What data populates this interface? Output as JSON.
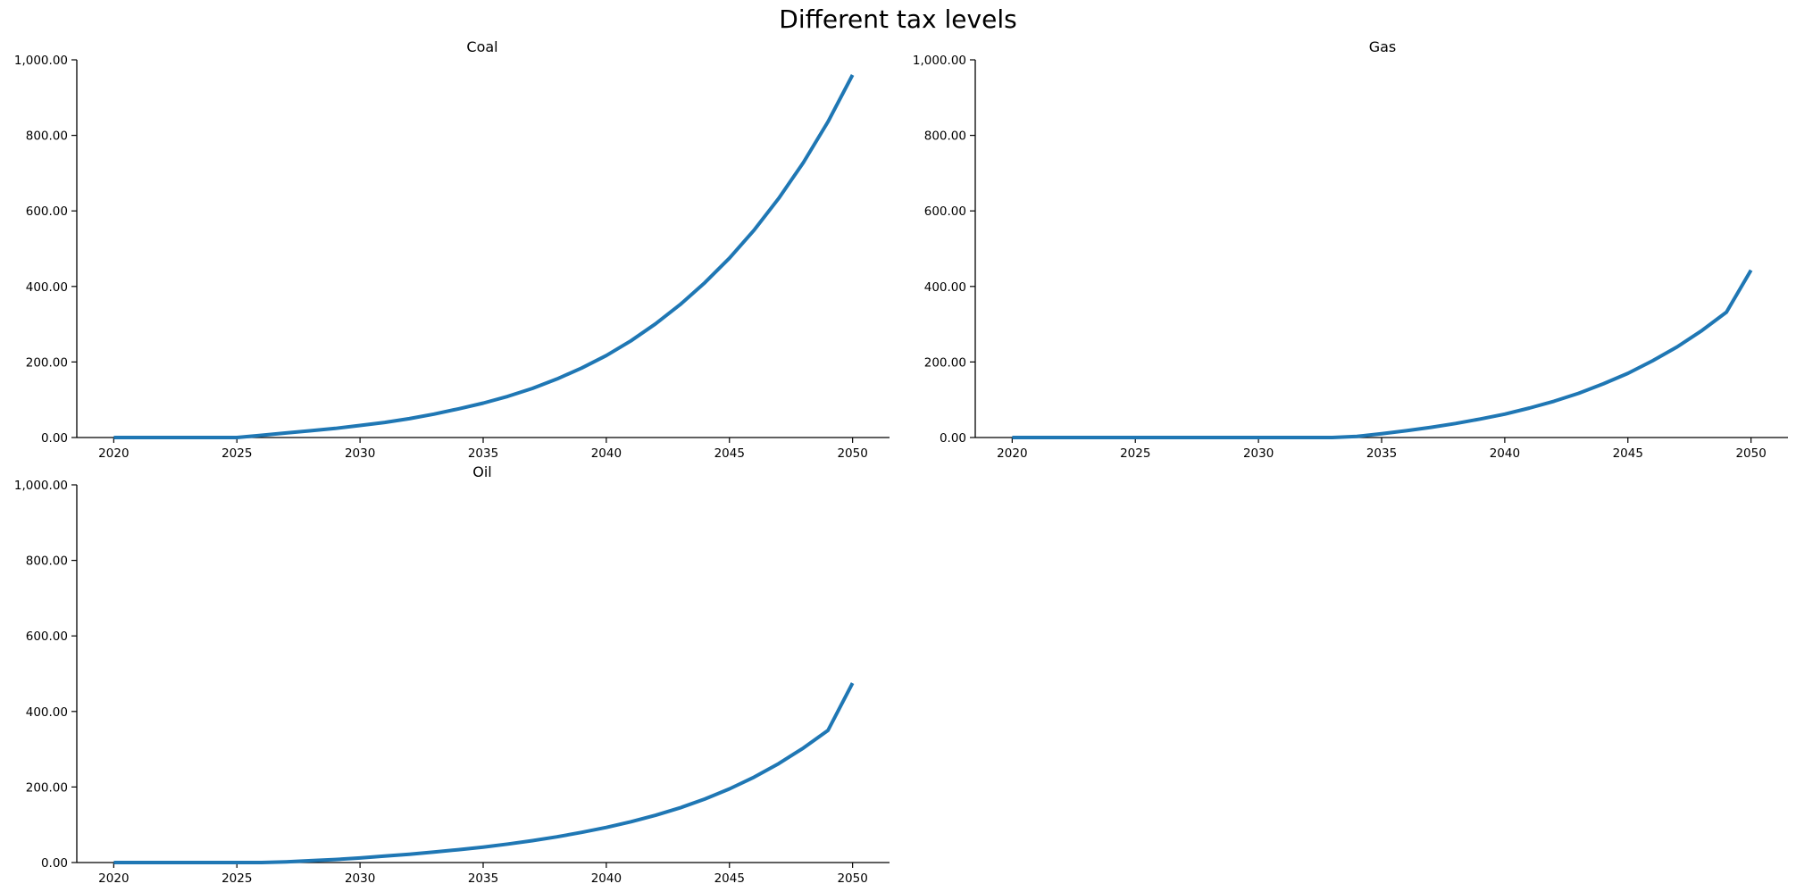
{
  "figure": {
    "title": "Different tax levels"
  },
  "colors": {
    "line": "#1f77b4"
  },
  "chart_data": [
    {
      "type": "line",
      "title": "Coal",
      "xlabel": "",
      "ylabel": "",
      "xlim": [
        2018.5,
        2051.5
      ],
      "ylim": [
        0,
        1000
      ],
      "x_ticks": [
        2020,
        2025,
        2030,
        2035,
        2040,
        2045,
        2050
      ],
      "y_ticks": [
        0,
        200,
        400,
        600,
        800,
        1000
      ],
      "y_tick_labels": [
        "0.00",
        "200.00",
        "400.00",
        "600.00",
        "800.00",
        "1,000.00"
      ],
      "grid": false,
      "series": [
        {
          "x": [
            2020,
            2021,
            2022,
            2023,
            2024,
            2025,
            2026,
            2027,
            2028,
            2029,
            2030,
            2031,
            2032,
            2033,
            2034,
            2035,
            2036,
            2037,
            2038,
            2039,
            2040,
            2041,
            2042,
            2043,
            2044,
            2045,
            2046,
            2047,
            2048,
            2049,
            2050
          ],
          "y": [
            0,
            0,
            0,
            0,
            0,
            0,
            6,
            12,
            18,
            24,
            32,
            40,
            50,
            62,
            76,
            91,
            109,
            130,
            155,
            184,
            217,
            256,
            301,
            352,
            410,
            475,
            549,
            633,
            728,
            836,
            960
          ]
        }
      ]
    },
    {
      "type": "line",
      "title": "Gas",
      "xlabel": "",
      "ylabel": "",
      "xlim": [
        2018.5,
        2051.5
      ],
      "ylim": [
        0,
        1000
      ],
      "x_ticks": [
        2020,
        2025,
        2030,
        2035,
        2040,
        2045,
        2050
      ],
      "y_ticks": [
        0,
        200,
        400,
        600,
        800,
        1000
      ],
      "y_tick_labels": [
        "0.00",
        "200.00",
        "400.00",
        "600.00",
        "800.00",
        "1,000.00"
      ],
      "grid": false,
      "series": [
        {
          "x": [
            2020,
            2021,
            2022,
            2023,
            2024,
            2025,
            2026,
            2027,
            2028,
            2029,
            2030,
            2031,
            2032,
            2033,
            2034,
            2035,
            2036,
            2037,
            2038,
            2039,
            2040,
            2041,
            2042,
            2043,
            2044,
            2045,
            2046,
            2047,
            2048,
            2049,
            2050
          ],
          "y": [
            0,
            0,
            0,
            0,
            0,
            0,
            0,
            0,
            0,
            0,
            0,
            0,
            0,
            0,
            3,
            10,
            18,
            27,
            37,
            49,
            62,
            78,
            96,
            117,
            142,
            170,
            203,
            240,
            283,
            332,
            443
          ]
        }
      ]
    },
    {
      "type": "line",
      "title": "Oil",
      "xlabel": "",
      "ylabel": "",
      "xlim": [
        2018.5,
        2051.5
      ],
      "ylim": [
        0,
        1000
      ],
      "x_ticks": [
        2020,
        2025,
        2030,
        2035,
        2040,
        2045,
        2050
      ],
      "y_ticks": [
        0,
        200,
        400,
        600,
        800,
        1000
      ],
      "y_tick_labels": [
        "0.00",
        "200.00",
        "400.00",
        "600.00",
        "800.00",
        "1,000.00"
      ],
      "grid": false,
      "series": [
        {
          "x": [
            2020,
            2021,
            2022,
            2023,
            2024,
            2025,
            2026,
            2027,
            2028,
            2029,
            2030,
            2031,
            2032,
            2033,
            2034,
            2035,
            2036,
            2037,
            2038,
            2039,
            2040,
            2041,
            2042,
            2043,
            2044,
            2045,
            2046,
            2047,
            2048,
            2049,
            2050
          ],
          "y": [
            0,
            0,
            0,
            0,
            0,
            0,
            0,
            2,
            5,
            8,
            12,
            17,
            22,
            28,
            34,
            41,
            49,
            58,
            68,
            80,
            93,
            108,
            125,
            145,
            168,
            195,
            226,
            262,
            303,
            350,
            475
          ]
        }
      ]
    }
  ]
}
